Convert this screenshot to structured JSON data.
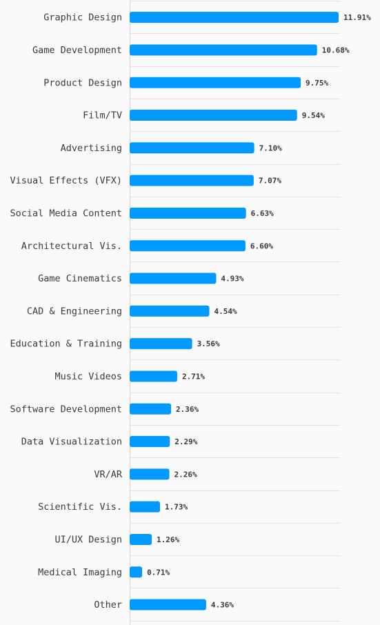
{
  "chart_data": {
    "type": "bar",
    "orientation": "horizontal",
    "categories": [
      "Graphic Design",
      "Game Development",
      "Product Design",
      "Film/TV",
      "Advertising",
      "Visual Effects (VFX)",
      "Social Media Content",
      "Architectural Vis.",
      "Game Cinematics",
      "CAD & Engineering",
      "Education & Training",
      "Music Videos",
      "Software Development",
      "Data Visualization",
      "VR/AR",
      "Scientific Vis.",
      "UI/UX Design",
      "Medical Imaging",
      "Other"
    ],
    "values": [
      11.91,
      10.68,
      9.75,
      9.54,
      7.1,
      7.07,
      6.63,
      6.6,
      4.93,
      4.54,
      3.56,
      2.71,
      2.36,
      2.29,
      2.26,
      1.73,
      1.26,
      0.71,
      4.36
    ],
    "value_labels": [
      "11.91%",
      "10.68%",
      "9.75%",
      "9.54%",
      "7.10%",
      "7.07%",
      "6.63%",
      "6.60%",
      "4.93%",
      "4.54%",
      "3.56%",
      "2.71%",
      "2.36%",
      "2.29%",
      "2.26%",
      "1.73%",
      "1.26%",
      "0.71%",
      "4.36%"
    ],
    "title": "",
    "xlabel": "",
    "ylabel": "",
    "xlim": [
      0,
      12.5
    ],
    "grid": true,
    "bar_color": "#0099ff"
  }
}
